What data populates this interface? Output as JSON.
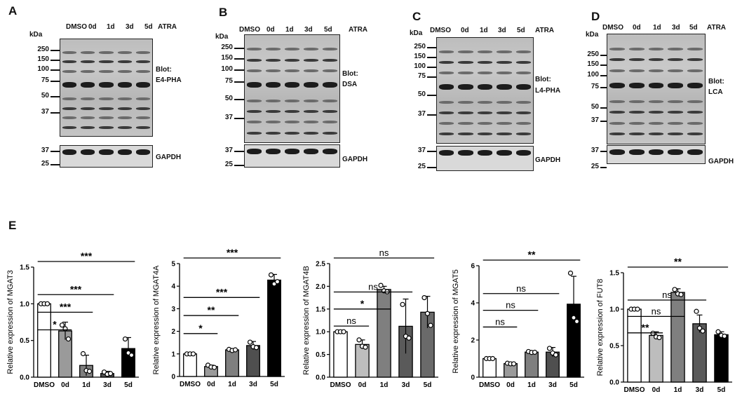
{
  "blots": [
    {
      "letter": "A",
      "lanes": [
        "DMSO",
        "0d",
        "1d",
        "3d",
        "5d"
      ],
      "treatment": "ATRA",
      "kda": "kDa",
      "mw_main": [
        "250",
        "150",
        "100",
        "75",
        "50",
        "37"
      ],
      "mw_gapdh": [
        "37",
        "25"
      ],
      "blot_label_1": "Blot:",
      "blot_label_2": "E4-PHA",
      "gapdh": "GAPDH"
    },
    {
      "letter": "B",
      "lanes": [
        "DMSO",
        "0d",
        "1d",
        "3d",
        "5d"
      ],
      "treatment": "ATRA",
      "kda": "kDa",
      "mw_main": [
        "250",
        "150",
        "100",
        "75",
        "50",
        "37"
      ],
      "mw_gapdh": [
        "37",
        "25"
      ],
      "blot_label_1": "Blot:",
      "blot_label_2": "DSA",
      "gapdh": "GAPDH"
    },
    {
      "letter": "C",
      "lanes": [
        "DMSO",
        "0d",
        "1d",
        "3d",
        "5d"
      ],
      "treatment": "ATRA",
      "kda": "kDa",
      "mw_main": [
        "250",
        "150",
        "100",
        "75",
        "50",
        "37"
      ],
      "mw_gapdh": [
        "37",
        "25"
      ],
      "blot_label_1": "Blot:",
      "blot_label_2": "L4-PHA",
      "gapdh": "GAPDH"
    },
    {
      "letter": "D",
      "lanes": [
        "DMSO",
        "0d",
        "1d",
        "3d",
        "5d"
      ],
      "treatment": "ATRA",
      "kda": "kDa",
      "mw_main": [
        "250",
        "150",
        "100",
        "75",
        "50",
        "37"
      ],
      "mw_gapdh": [
        "37",
        "25"
      ],
      "blot_label_1": "Blot:",
      "blot_label_2": "LCA",
      "gapdh": "GAPDH"
    }
  ],
  "panel_e_letter": "E",
  "chart_data": [
    {
      "type": "bar",
      "categories": [
        "DMSO",
        "0d",
        "1d",
        "3d",
        "5d"
      ],
      "values": [
        1.0,
        0.63,
        0.16,
        0.05,
        0.39
      ],
      "errors": [
        0.01,
        0.12,
        0.14,
        0.03,
        0.15
      ],
      "ylabel": "Relative expression of MGAT3",
      "ylim": [
        0,
        1.5
      ],
      "yticks": [
        "0.0",
        "0.5",
        "1.0",
        "1.5"
      ],
      "points": [
        [
          1.0,
          1.0,
          1.0
        ],
        [
          0.71,
          0.66,
          0.52
        ],
        [
          0.32,
          0.09,
          0.08
        ],
        [
          0.07,
          0.04,
          0.05
        ],
        [
          0.52,
          0.33,
          0.3
        ]
      ],
      "comparisons": [
        {
          "to": 1,
          "label": "*"
        },
        {
          "to": 2,
          "label": "***"
        },
        {
          "to": 3,
          "label": "***"
        },
        {
          "to": 4,
          "label": "***"
        }
      ],
      "bar_colors": [
        "#ffffff",
        "#9a9a9a",
        "#7f7f7f",
        "#4f4f4f",
        "#000000"
      ]
    },
    {
      "type": "bar",
      "categories": [
        "DMSO",
        "0d",
        "1d",
        "3d",
        "5d"
      ],
      "values": [
        1.0,
        0.44,
        1.18,
        1.37,
        4.27
      ],
      "errors": [
        0.02,
        0.06,
        0.05,
        0.18,
        0.25
      ],
      "ylabel": "Relative expression of MGAT4A",
      "ylim": [
        0,
        5
      ],
      "yticks": [
        "0",
        "1",
        "2",
        "3",
        "4",
        "5"
      ],
      "points": [
        [
          1.0,
          1.0,
          1.0
        ],
        [
          0.5,
          0.42,
          0.4
        ],
        [
          1.2,
          1.15,
          1.18
        ],
        [
          1.52,
          1.32,
          1.28
        ],
        [
          4.5,
          4.1,
          4.2
        ]
      ],
      "comparisons": [
        {
          "to": 1,
          "label": "*"
        },
        {
          "to": 2,
          "label": "**"
        },
        {
          "to": 3,
          "label": "***"
        },
        {
          "to": 4,
          "label": "***"
        }
      ],
      "bar_colors": [
        "#ffffff",
        "#9a9a9a",
        "#7f7f7f",
        "#4f4f4f",
        "#000000"
      ]
    },
    {
      "type": "bar",
      "categories": [
        "DMSO",
        "0d",
        "1d",
        "3d",
        "5d"
      ],
      "values": [
        1.0,
        0.72,
        1.93,
        1.12,
        1.43
      ],
      "errors": [
        0.02,
        0.1,
        0.07,
        0.6,
        0.35
      ],
      "ylabel": "Relative expression of MGAT4B",
      "ylim": [
        0,
        2.5
      ],
      "yticks": [
        "0.0",
        "0.5",
        "1.0",
        "1.5",
        "2.0",
        "2.5"
      ],
      "points": [
        [
          1.0,
          1.0,
          1.0
        ],
        [
          0.82,
          0.68,
          0.66
        ],
        [
          2.02,
          1.9,
          1.88
        ],
        [
          1.6,
          0.9,
          0.86
        ],
        [
          1.75,
          1.4,
          1.14
        ]
      ],
      "comparisons": [
        {
          "to": 1,
          "label": "ns"
        },
        {
          "to": 2,
          "label": "*"
        },
        {
          "to": 3,
          "label": "ns"
        },
        {
          "to": 4,
          "label": "ns"
        }
      ],
      "bar_colors": [
        "#ffffff",
        "#bdbdbd",
        "#7f7f7f",
        "#5a5a5a",
        "#6a6a6a"
      ]
    },
    {
      "type": "bar",
      "categories": [
        "DMSO",
        "0d",
        "1d",
        "3d",
        "5d"
      ],
      "values": [
        1.0,
        0.73,
        1.35,
        1.35,
        3.93
      ],
      "errors": [
        0.02,
        0.04,
        0.05,
        0.25,
        1.5
      ],
      "ylabel": "Relative expression of MGAT5",
      "ylim": [
        0,
        6
      ],
      "yticks": [
        "0",
        "2",
        "4",
        "6"
      ],
      "points": [
        [
          1.0,
          1.0,
          1.0
        ],
        [
          0.75,
          0.72,
          0.72
        ],
        [
          1.38,
          1.33,
          1.34
        ],
        [
          1.55,
          1.3,
          1.2
        ],
        [
          5.6,
          3.2,
          3.0
        ]
      ],
      "comparisons": [
        {
          "to": 1,
          "label": "ns"
        },
        {
          "to": 2,
          "label": "ns"
        },
        {
          "to": 3,
          "label": "ns"
        },
        {
          "to": 4,
          "label": "**"
        }
      ],
      "bar_colors": [
        "#ffffff",
        "#9a9a9a",
        "#7f7f7f",
        "#4f4f4f",
        "#000000"
      ]
    },
    {
      "type": "bar",
      "categories": [
        "DMSO",
        "0d",
        "1d",
        "3d",
        "5d"
      ],
      "values": [
        1.0,
        0.64,
        1.23,
        0.8,
        0.65
      ],
      "errors": [
        0.01,
        0.05,
        0.05,
        0.12,
        0.04
      ],
      "ylabel": "Relative expression of FUT8",
      "ylim": [
        0,
        1.5
      ],
      "yticks": [
        "0.0",
        "0.5",
        "1.0",
        "1.5"
      ],
      "points": [
        [
          1.0,
          1.0,
          1.0
        ],
        [
          0.67,
          0.62,
          0.61
        ],
        [
          1.27,
          1.21,
          1.2
        ],
        [
          0.97,
          0.74,
          0.7
        ],
        [
          0.69,
          0.64,
          0.63
        ]
      ],
      "comparisons": [
        {
          "to": 1,
          "label": "**"
        },
        {
          "to": 2,
          "label": "ns"
        },
        {
          "to": 3,
          "label": "ns"
        },
        {
          "to": 4,
          "label": "**"
        }
      ],
      "bar_colors": [
        "#ffffff",
        "#bdbdbd",
        "#7f7f7f",
        "#5a5a5a",
        "#000000"
      ]
    }
  ]
}
